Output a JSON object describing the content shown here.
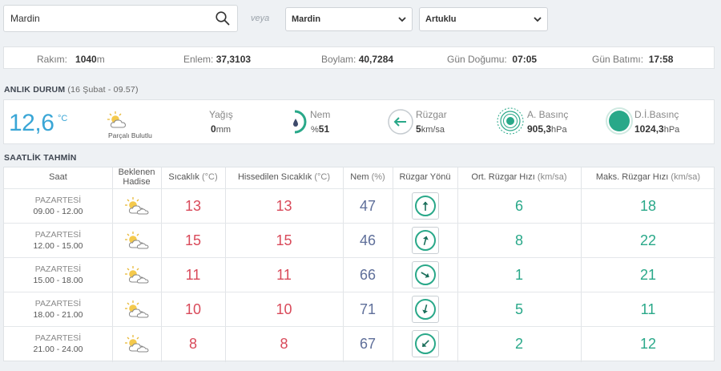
{
  "search": {
    "value": "Mardin"
  },
  "veya": "veya",
  "province_select": "Mardin",
  "district_select": "Artuklu",
  "info": {
    "rakim_label": "Rakım:",
    "rakim_value": "1040",
    "rakim_unit": "m",
    "enlem_label": "Enlem:",
    "enlem_value": "37,3103",
    "boylam_label": "Boylam:",
    "boylam_value": "40,7284",
    "gun_dogumu_label": "Gün Doğumu:",
    "gun_dogumu_value": "07:05",
    "gun_batimi_label": "Gün Batımı:",
    "gun_batimi_value": "17:58"
  },
  "anlik": {
    "title": "ANLIK DURUM",
    "subtitle": "(16 Şubat - 09.57)",
    "temperature": "12,6",
    "temp_unit": "°C",
    "condition": "Parçalı Bulutlu",
    "yagis_label": "Yağış",
    "yagis_value": "0",
    "yagis_unit": "mm",
    "nem_label": "Nem",
    "nem_prefix": "%",
    "nem_value": "51",
    "ruzgar_label": "Rüzgar",
    "ruzgar_value": "5",
    "ruzgar_unit": "km/sa",
    "abasinc_label": "A. Basınç",
    "abasinc_value": "905,3",
    "abasinc_unit": "hPa",
    "dibasinc_label": "D.İ.Basınç",
    "dibasinc_value": "1024,3",
    "dibasinc_unit": "hPa",
    "colors": {
      "temp": "#3aa6d6",
      "green": "#29a889",
      "humidity_drop": "#3d4a6b"
    }
  },
  "saatlik": {
    "title": "SAATLİK TAHMİN",
    "headers": {
      "saat": "Saat",
      "hadise_1": "Beklenen",
      "hadise_2": "Hadise",
      "sicaklik": "Sıcaklık",
      "sicaklik_unit": "(°C)",
      "hissedilen": "Hissedilen Sıcaklık",
      "hissedilen_unit": "(°C)",
      "nem": "Nem",
      "nem_unit": "(%)",
      "yon": "Rüzgar Yönü",
      "ort": "Ort. Rüzgar Hızı",
      "ort_unit": "(km/sa)",
      "maks": "Maks. Rüzgar Hızı",
      "maks_unit": "(km/sa)"
    },
    "rows": [
      {
        "day": "PAZARTESİ",
        "time": "09.00 - 12.00",
        "icon": "partly-cloudy-icon",
        "temp": "13",
        "feels": "13",
        "humidity": "47",
        "wind_dir_deg": 0,
        "avg": "6",
        "max": "18"
      },
      {
        "day": "PAZARTESİ",
        "time": "12.00 - 15.00",
        "icon": "partly-cloudy-icon",
        "temp": "15",
        "feels": "15",
        "humidity": "46",
        "wind_dir_deg": 15,
        "avg": "8",
        "max": "22"
      },
      {
        "day": "PAZARTESİ",
        "time": "15.00 - 18.00",
        "icon": "partly-cloudy-icon",
        "temp": "11",
        "feels": "11",
        "humidity": "66",
        "wind_dir_deg": 120,
        "avg": "1",
        "max": "21"
      },
      {
        "day": "PAZARTESİ",
        "time": "18.00 - 21.00",
        "icon": "partly-cloudy-icon",
        "temp": "10",
        "feels": "10",
        "humidity": "71",
        "wind_dir_deg": 195,
        "avg": "5",
        "max": "11"
      },
      {
        "day": "PAZARTESİ",
        "time": "21.00 - 24.00",
        "icon": "partly-cloudy-icon",
        "temp": "8",
        "feels": "8",
        "humidity": "67",
        "wind_dir_deg": 225,
        "avg": "2",
        "max": "12"
      }
    ],
    "colors": {
      "temp": "#d94a5a",
      "humidity": "#5f6f9a",
      "wind": "#29a889"
    }
  }
}
